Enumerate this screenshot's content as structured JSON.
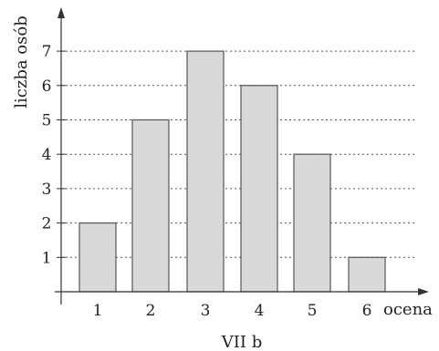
{
  "chart_data": {
    "type": "bar",
    "title": "",
    "caption": "VII b",
    "xlabel": "ocena",
    "ylabel": "liczba osób",
    "categories": [
      "1",
      "2",
      "3",
      "4",
      "5",
      "6"
    ],
    "values": [
      2,
      5,
      7,
      6,
      4,
      1
    ],
    "yticks": [
      "1",
      "2",
      "3",
      "4",
      "5",
      "6",
      "7"
    ],
    "ylim": [
      0,
      7
    ],
    "grid": "horizontal dotted",
    "bar_color": "#d9d9d9",
    "bar_stroke": "#555555"
  }
}
